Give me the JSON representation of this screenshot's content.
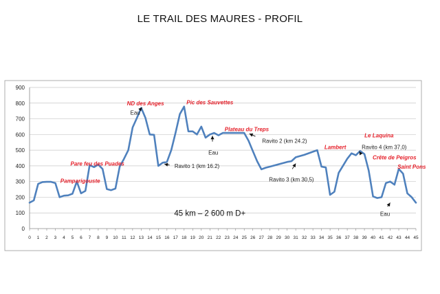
{
  "title": "LE TRAIL DES MAURES - PROFIL",
  "chart_data": {
    "type": "line",
    "xlim": [
      0,
      45
    ],
    "ylim": [
      0,
      900
    ],
    "x_ticks": [
      0,
      1,
      2,
      3,
      4,
      5,
      6,
      7,
      8,
      9,
      10,
      11,
      12,
      13,
      14,
      15,
      16,
      17,
      18,
      19,
      20,
      21,
      22,
      23,
      24,
      25,
      26,
      27,
      28,
      29,
      30,
      31,
      32,
      33,
      34,
      35,
      36,
      37,
      38,
      39,
      40,
      41,
      42,
      43,
      44,
      45
    ],
    "y_ticks": [
      0,
      100,
      200,
      300,
      400,
      500,
      600,
      700,
      800,
      900
    ],
    "grid": true,
    "series": [
      {
        "color": "#4f81bd",
        "points": [
          [
            0,
            165
          ],
          [
            0.5,
            180
          ],
          [
            1,
            285
          ],
          [
            1.5,
            297
          ],
          [
            2,
            298
          ],
          [
            2.5,
            298
          ],
          [
            3,
            290
          ],
          [
            3.5,
            200
          ],
          [
            4,
            210
          ],
          [
            4.5,
            212
          ],
          [
            5,
            222
          ],
          [
            5.5,
            300
          ],
          [
            6,
            225
          ],
          [
            6.5,
            240
          ],
          [
            7,
            405
          ],
          [
            7.5,
            392
          ],
          [
            8,
            408
          ],
          [
            8.5,
            380
          ],
          [
            9,
            252
          ],
          [
            9.5,
            245
          ],
          [
            10,
            255
          ],
          [
            10.5,
            395
          ],
          [
            11,
            445
          ],
          [
            11.5,
            500
          ],
          [
            12,
            645
          ],
          [
            12.5,
            705
          ],
          [
            13,
            770
          ],
          [
            13.5,
            705
          ],
          [
            14,
            600
          ],
          [
            14.5,
            598
          ],
          [
            15,
            400
          ],
          [
            15.5,
            420
          ],
          [
            16,
            425
          ],
          [
            16.5,
            500
          ],
          [
            17,
            610
          ],
          [
            17.5,
            730
          ],
          [
            18,
            778
          ],
          [
            18.5,
            620
          ],
          [
            19,
            620
          ],
          [
            19.5,
            600
          ],
          [
            20,
            650
          ],
          [
            20.5,
            580
          ],
          [
            21,
            600
          ],
          [
            21.5,
            610
          ],
          [
            22,
            595
          ],
          [
            22.5,
            610
          ],
          [
            23,
            610
          ],
          [
            24,
            610
          ],
          [
            25,
            610
          ],
          [
            25.5,
            560
          ],
          [
            26,
            495
          ],
          [
            26.5,
            430
          ],
          [
            27,
            378
          ],
          [
            27.5,
            388
          ],
          [
            28,
            395
          ],
          [
            29,
            410
          ],
          [
            30,
            425
          ],
          [
            30.5,
            430
          ],
          [
            31,
            455
          ],
          [
            32,
            470
          ],
          [
            33,
            490
          ],
          [
            33.5,
            500
          ],
          [
            34,
            395
          ],
          [
            34.5,
            390
          ],
          [
            35,
            215
          ],
          [
            35.5,
            235
          ],
          [
            36,
            355
          ],
          [
            36.5,
            400
          ],
          [
            37,
            445
          ],
          [
            37.5,
            480
          ],
          [
            38,
            468
          ],
          [
            38.5,
            495
          ],
          [
            39,
            475
          ],
          [
            39.5,
            370
          ],
          [
            40,
            205
          ],
          [
            40.5,
            195
          ],
          [
            41,
            200
          ],
          [
            41.5,
            290
          ],
          [
            42,
            300
          ],
          [
            42.5,
            280
          ],
          [
            43,
            380
          ],
          [
            43.5,
            350
          ],
          [
            44,
            225
          ],
          [
            44.5,
            200
          ],
          [
            45,
            165
          ]
        ]
      }
    ],
    "annotations": [
      {
        "text": "ND des Anges",
        "style": "red",
        "x": 13.5,
        "y": 800
      },
      {
        "text": "Pic des Sauvettes",
        "style": "red",
        "x": 21,
        "y": 805
      },
      {
        "text": "Eau",
        "style": "black",
        "x": 12.3,
        "y": 740
      },
      {
        "text": "Plateau du Treps",
        "style": "red",
        "x": 25.3,
        "y": 635
      },
      {
        "text": "Ravito 2 (km 24.2)",
        "style": "black",
        "x": 29.7,
        "y": 560
      },
      {
        "text": "Eau",
        "style": "black",
        "x": 21.4,
        "y": 485
      },
      {
        "text": "Ravito 1 (km 16.2)",
        "style": "black",
        "x": 19.5,
        "y": 400
      },
      {
        "text": "Pare feu des Puades",
        "style": "red",
        "x": 7.9,
        "y": 415
      },
      {
        "text": "Pamparigouste",
        "style": "red",
        "x": 5.9,
        "y": 305
      },
      {
        "text": "Lambert",
        "style": "red",
        "x": 35.6,
        "y": 520
      },
      {
        "text": "Le Laquina",
        "style": "red",
        "x": 40.7,
        "y": 595
      },
      {
        "text": "Ravito 4 (km 37,0)",
        "style": "black",
        "x": 41.3,
        "y": 520
      },
      {
        "text": "Crête de Peigros",
        "style": "red",
        "x": 42.5,
        "y": 455
      },
      {
        "text": "Saint Pons",
        "style": "red",
        "x": 44.5,
        "y": 395
      },
      {
        "text": "Ravito 3 (km 30,5)",
        "style": "black",
        "x": 30.5,
        "y": 315
      },
      {
        "text": "Eau",
        "style": "black",
        "x": 41.4,
        "y": 95
      },
      {
        "text": "45 km – 2 600 m D+",
        "style": "center",
        "x": 21,
        "y": 95
      }
    ],
    "arrows": [
      {
        "from": [
          12.8,
          755
        ],
        "to": [
          13.1,
          772
        ]
      },
      {
        "from": [
          21.3,
          555
        ],
        "to": [
          21.3,
          592
        ]
      },
      {
        "from": [
          16.3,
          405
        ],
        "to": [
          15.7,
          412
        ]
      },
      {
        "from": [
          26.3,
          588
        ],
        "to": [
          25.6,
          605
        ]
      },
      {
        "from": [
          30.6,
          380
        ],
        "to": [
          31.0,
          415
        ]
      },
      {
        "from": [
          38.6,
          475
        ],
        "to": [
          38.4,
          492
        ]
      },
      {
        "from": [
          41.7,
          140
        ],
        "to": [
          42.0,
          165
        ]
      }
    ]
  }
}
